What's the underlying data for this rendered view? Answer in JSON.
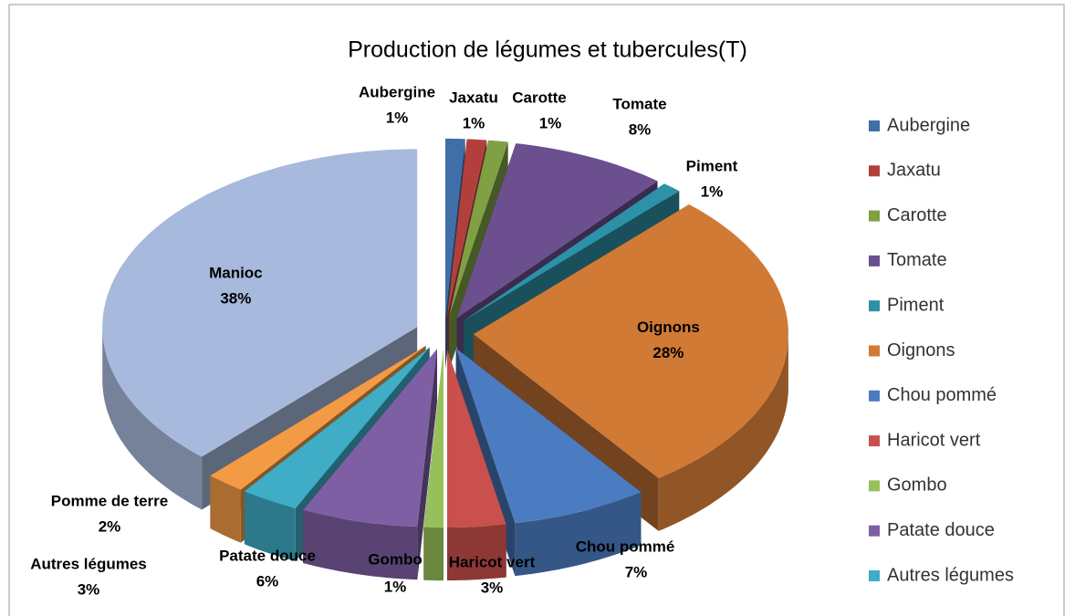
{
  "chart_data": {
    "type": "pie3d",
    "title": "Production de légumes et tubercules(T)",
    "categories": [
      "Aubergine",
      "Jaxatu",
      "Carotte",
      "Tomate",
      "Piment",
      "Oignons",
      "Chou pommé",
      "Haricot vert",
      "Gombo",
      "Patate douce",
      "Autres légumes",
      "Pomme de terre",
      "Manioc"
    ],
    "values": [
      1,
      1,
      1,
      8,
      1,
      28,
      7,
      3,
      1,
      6,
      3,
      2,
      38
    ],
    "value_labels": [
      "1%",
      "1%",
      "1%",
      "8%",
      "1%",
      "28%",
      "7%",
      "3%",
      "1%",
      "6%",
      "3%",
      "2%",
      "38%"
    ],
    "colors": [
      "#3f6ea8",
      "#b33f3c",
      "#7fa043",
      "#6b4f8e",
      "#2d91a8",
      "#d07a36",
      "#4b7cc1",
      "#c9504c",
      "#98c05a",
      "#7e5fa4",
      "#3fadc6",
      "#f39a45",
      "#a7b9dc"
    ],
    "legend": "right"
  }
}
